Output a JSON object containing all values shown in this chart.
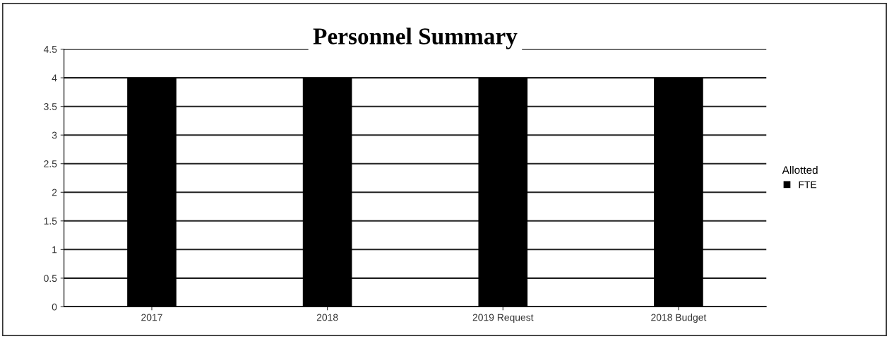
{
  "chart_data": {
    "type": "bar",
    "title": "Personnel Summary",
    "categories": [
      "2017",
      "2018",
      "2019 Request",
      "2018 Budget"
    ],
    "series": [
      {
        "name": "FTE",
        "color": "#000000",
        "values": [
          4,
          4,
          4,
          4
        ]
      }
    ],
    "legend_title": "Allotted",
    "ylim": [
      0,
      4.5
    ],
    "yticks": [
      0,
      0.5,
      1,
      1.5,
      2,
      2.5,
      3,
      3.5,
      4,
      4.5
    ],
    "grid": "y",
    "legend": "right"
  }
}
